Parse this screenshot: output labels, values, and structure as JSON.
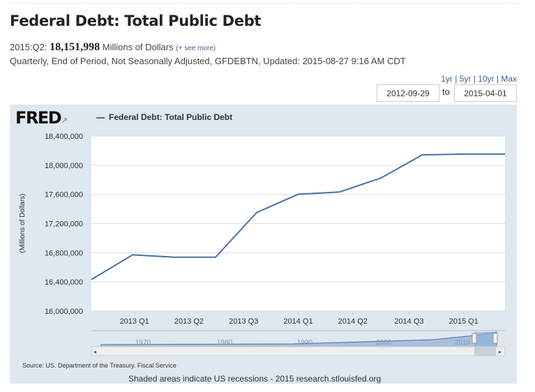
{
  "header": {
    "title": "Federal Debt: Total Public Debt",
    "period": "2015:Q2:",
    "value": "18,151,998",
    "units": "Millions of Dollars",
    "see_more": "(+ see more)",
    "meta": "Quarterly, End of Period, Not Seasonally Adjusted, GFDEBTN, Updated: 2015-08-27 9:16 AM CDT"
  },
  "ranges": [
    "1yr",
    "5yr",
    "10yr",
    "Max"
  ],
  "dates": {
    "from": "2012-09-29",
    "to_label": "to",
    "to": "2015-04-01"
  },
  "logo": "FRED",
  "source": "Source: US. Department of the Treasury. Fiscal Service",
  "footer": "Shaded areas indicate US recessions - 2015 research.stlouisfed.org",
  "colors": {
    "line": "#4572a7",
    "panel": "#dfe7ef"
  },
  "chart_data": {
    "type": "line",
    "title": "Federal Debt: Total Public Debt",
    "ylabel": "(Millions of Dollars)",
    "ylim": [
      16000000,
      18400000
    ],
    "xlim": [
      2012.75,
      2015.25
    ],
    "yticks": [
      16000000,
      16400000,
      16800000,
      17200000,
      17600000,
      18000000,
      18400000
    ],
    "ytick_labels": [
      "16,000,000",
      "16,400,000",
      "16,800,000",
      "17,200,000",
      "17,600,000",
      "18,000,000",
      "18,400,000"
    ],
    "xticks": [
      {
        "x": 2013.01,
        "label": "2013 Q1"
      },
      {
        "x": 2013.34,
        "label": "2013 Q2"
      },
      {
        "x": 2013.67,
        "label": "2013 Q3"
      },
      {
        "x": 2014.0,
        "label": "2014 Q1"
      },
      {
        "x": 2014.33,
        "label": "2014 Q2"
      },
      {
        "x": 2014.67,
        "label": "2014 Q3"
      },
      {
        "x": 2015.0,
        "label": "2015 Q1"
      }
    ],
    "series": [
      {
        "name": "Federal Debt: Total Public Debt",
        "x": [
          2012.75,
          2013.0,
          2013.25,
          2013.5,
          2013.75,
          2014.0,
          2014.25,
          2014.5,
          2014.75,
          2015.0,
          2015.25
        ],
        "values": [
          16432705,
          16771379,
          16738184,
          16738184,
          17351971,
          17601227,
          17632606,
          17824071,
          18141444,
          18152056,
          18151998
        ]
      }
    ],
    "navigator": {
      "labels": [
        "1970",
        "1980",
        "1990",
        "2000",
        "2010"
      ]
    }
  }
}
